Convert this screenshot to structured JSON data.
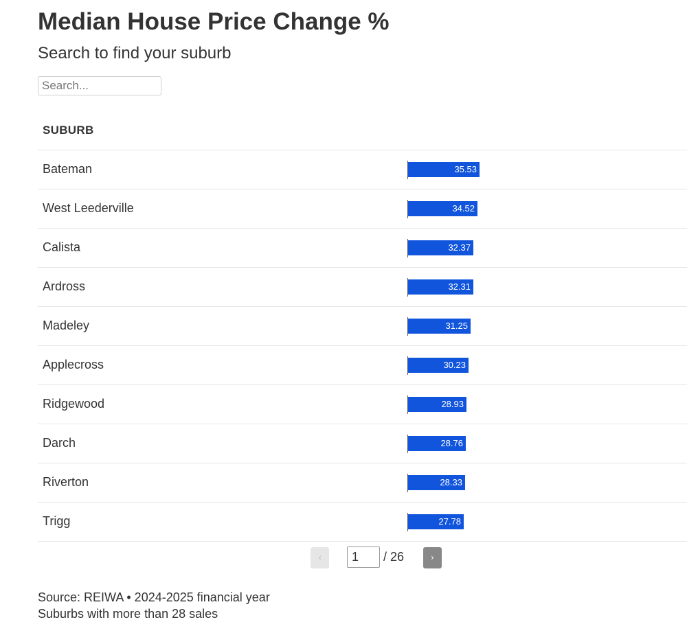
{
  "header": {
    "title": "Median House Price Change %",
    "subtitle": "Search to find your suburb"
  },
  "search": {
    "placeholder": "Search...",
    "value": ""
  },
  "table": {
    "columns": [
      "SUBURB"
    ],
    "rows": [
      {
        "suburb": "Bateman",
        "change": 35.53,
        "label": "35.53"
      },
      {
        "suburb": "West Leederville",
        "change": 34.52,
        "label": "34.52"
      },
      {
        "suburb": "Calista",
        "change": 32.37,
        "label": "32.37"
      },
      {
        "suburb": "Ardross",
        "change": 32.31,
        "label": "32.31"
      },
      {
        "suburb": "Madeley",
        "change": 31.25,
        "label": "31.25"
      },
      {
        "suburb": "Applecross",
        "change": 30.23,
        "label": "30.23"
      },
      {
        "suburb": "Ridgewood",
        "change": 28.93,
        "label": "28.93"
      },
      {
        "suburb": "Darch",
        "change": 28.76,
        "label": "28.76"
      },
      {
        "suburb": "Riverton",
        "change": 28.33,
        "label": "28.33"
      },
      {
        "suburb": "Trigg",
        "change": 27.78,
        "label": "27.78"
      }
    ],
    "bar_color": "#1155dd"
  },
  "pagination": {
    "prev_icon": "‹",
    "next_icon": "›",
    "current_page": "1",
    "total_label": "/ 26"
  },
  "footer": {
    "source": "Source: REIWA • 2024-2025 financial year",
    "note": "Suburbs with more than 28 sales"
  }
}
